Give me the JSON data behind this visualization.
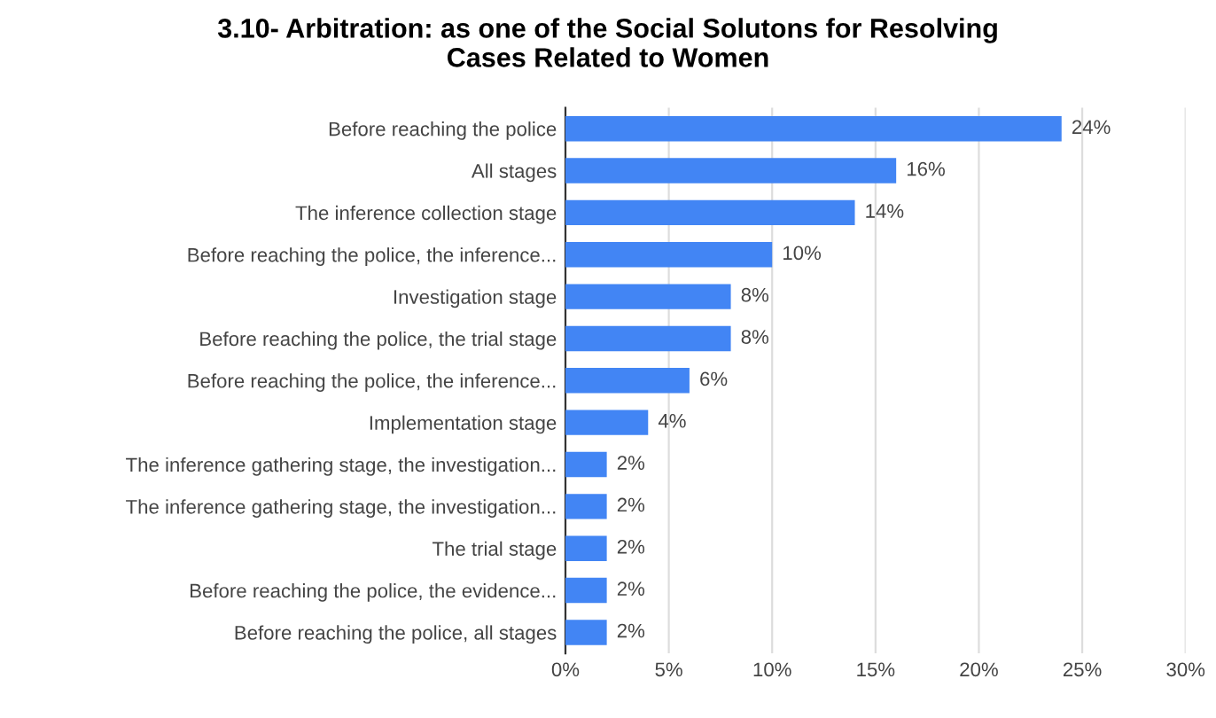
{
  "chart_data": {
    "type": "bar",
    "orientation": "horizontal",
    "title": "3.10- Arbitration: as one of the Social Solutons for Resolving\nCases Related to Women",
    "categories": [
      "Before reaching the police",
      "All stages",
      "The inference collection stage",
      "Before reaching the police, the inference...",
      "Investigation stage",
      "Before reaching the police, the trial stage",
      "Before reaching the police, the inference...",
      "Implementation stage",
      "The inference gathering stage, the investigation...",
      "The inference gathering stage, the investigation...",
      "The trial stage",
      "Before reaching the police, the evidence...",
      "Before reaching the police, all stages"
    ],
    "series": [
      {
        "color": "#4285f4",
        "values": [
          24,
          16,
          14,
          10,
          8,
          8,
          6,
          4,
          2,
          2,
          2,
          2,
          2
        ],
        "value_labels": [
          "24%",
          "16%",
          "14%",
          "10%",
          "8%",
          "8%",
          "6%",
          "4%",
          "2%",
          "2%",
          "2%",
          "2%",
          "2%"
        ]
      }
    ],
    "xlim": [
      0,
      30
    ],
    "xticks": [
      {
        "value": 0,
        "label": "0%"
      },
      {
        "value": 5,
        "label": "5%"
      },
      {
        "value": 10,
        "label": "10%"
      },
      {
        "value": 15,
        "label": "15%"
      },
      {
        "value": 20,
        "label": "20%"
      },
      {
        "value": 25,
        "label": "25%"
      },
      {
        "value": 30,
        "label": "30%"
      }
    ],
    "grid": "x"
  }
}
